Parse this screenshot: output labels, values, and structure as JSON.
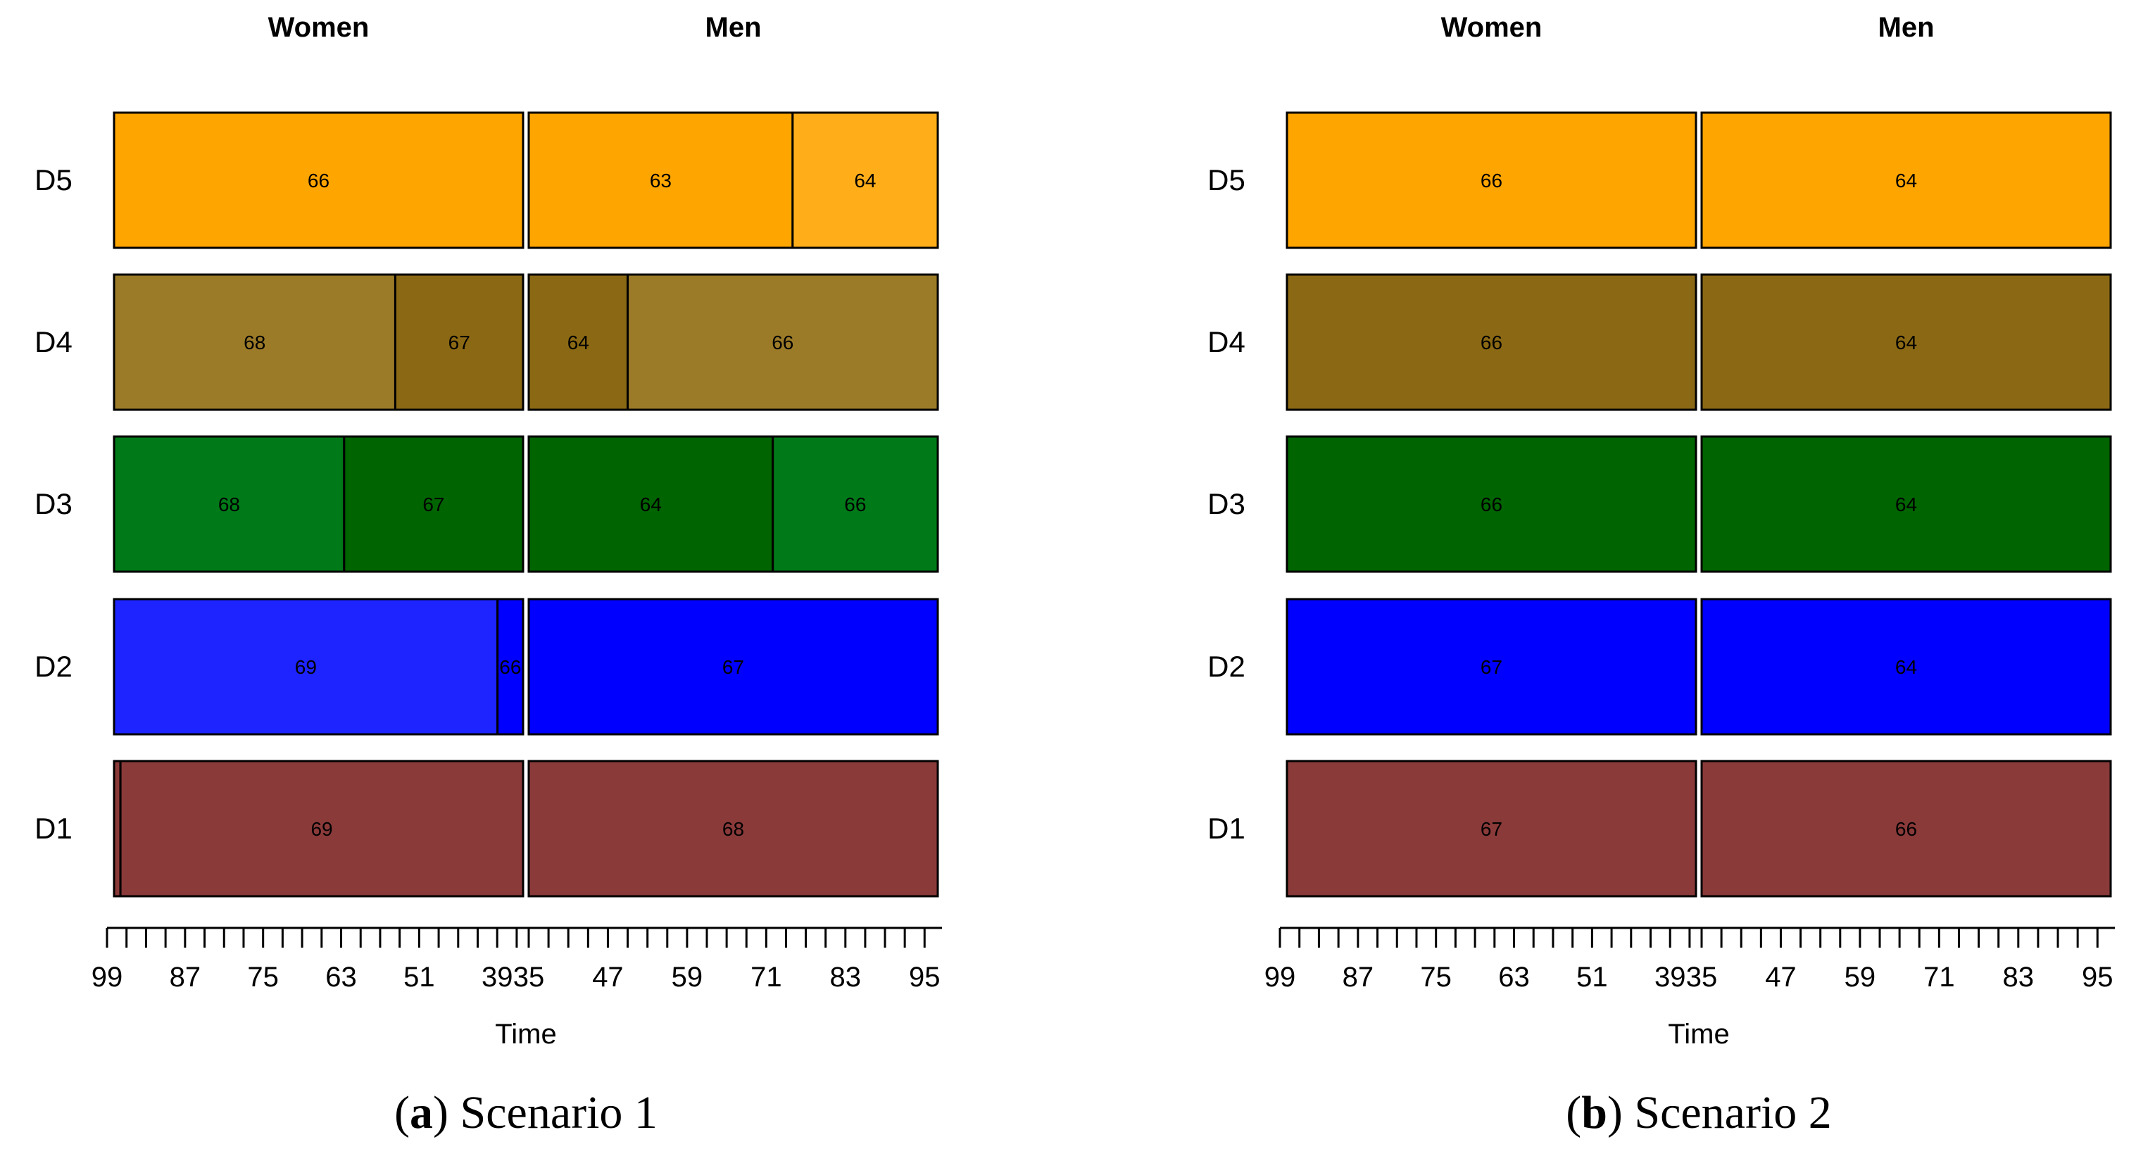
{
  "chart_data": [
    {
      "type": "timeline",
      "caption_letter": "a",
      "caption_text": "Scenario 1",
      "groups": [
        "Women",
        "Men"
      ],
      "rows": [
        "D5",
        "D4",
        "D3",
        "D2",
        "D1"
      ],
      "x_axis": {
        "title": "Time",
        "women_ticks": [
          "99",
          "87",
          "75",
          "63",
          "51",
          "39"
        ],
        "men_ticks": [
          "35",
          "47",
          "59",
          "71",
          "83",
          "95"
        ],
        "women_range": [
          99,
          35
        ],
        "men_range": [
          35,
          97
        ]
      },
      "segments": {
        "D5": {
          "Women": [
            {
              "label": "66",
              "from": 99,
              "to": 35,
              "color": "#FFA500"
            }
          ],
          "Men": [
            {
              "label": "63",
              "from": 35,
              "to": 75,
              "color": "#FFA500"
            },
            {
              "label": "64",
              "from": 75,
              "to": 97,
              "color": "#FFAE1A"
            }
          ]
        },
        "D4": {
          "Women": [
            {
              "label": "68",
              "from": 99,
              "to": 55,
              "color": "#9C7B28"
            },
            {
              "label": "67",
              "from": 55,
              "to": 35,
              "color": "#8B6914"
            }
          ],
          "Men": [
            {
              "label": "64",
              "from": 35,
              "to": 50,
              "color": "#8B6914"
            },
            {
              "label": "66",
              "from": 50,
              "to": 97,
              "color": "#9C7B28"
            }
          ]
        },
        "D3": {
          "Women": [
            {
              "label": "68",
              "from": 99,
              "to": 63,
              "color": "#007A18"
            },
            {
              "label": "67",
              "from": 63,
              "to": 35,
              "color": "#006400"
            }
          ],
          "Men": [
            {
              "label": "64",
              "from": 35,
              "to": 72,
              "color": "#006400"
            },
            {
              "label": "66",
              "from": 72,
              "to": 97,
              "color": "#007A18"
            }
          ]
        },
        "D2": {
          "Women": [
            {
              "label": "69",
              "from": 99,
              "to": 39,
              "color": "#1E24FF"
            },
            {
              "label": "66",
              "from": 39,
              "to": 35,
              "color": "#0000FF"
            }
          ],
          "Men": [
            {
              "label": "67",
              "from": 35,
              "to": 97,
              "color": "#0000FF"
            }
          ]
        },
        "D1": {
          "Women": [
            {
              "label": "",
              "from": 99,
              "to": 98,
              "color": "#8B3A3A"
            },
            {
              "label": "69",
              "from": 98,
              "to": 35,
              "color": "#8B3A3A"
            }
          ],
          "Men": [
            {
              "label": "68",
              "from": 35,
              "to": 97,
              "color": "#8B3A3A"
            }
          ]
        }
      }
    },
    {
      "type": "timeline",
      "caption_letter": "b",
      "caption_text": "Scenario 2",
      "groups": [
        "Women",
        "Men"
      ],
      "rows": [
        "D5",
        "D4",
        "D3",
        "D2",
        "D1"
      ],
      "x_axis": {
        "title": "Time",
        "women_ticks": [
          "99",
          "87",
          "75",
          "63",
          "51",
          "39"
        ],
        "men_ticks": [
          "35",
          "47",
          "59",
          "71",
          "83",
          "95"
        ],
        "women_range": [
          99,
          35
        ],
        "men_range": [
          35,
          97
        ]
      },
      "segments": {
        "D5": {
          "Women": [
            {
              "label": "66",
              "from": 99,
              "to": 35,
              "color": "#FFA500"
            }
          ],
          "Men": [
            {
              "label": "64",
              "from": 35,
              "to": 97,
              "color": "#FFA500"
            }
          ]
        },
        "D4": {
          "Women": [
            {
              "label": "66",
              "from": 99,
              "to": 35,
              "color": "#8B6914"
            }
          ],
          "Men": [
            {
              "label": "64",
              "from": 35,
              "to": 97,
              "color": "#8B6914"
            }
          ]
        },
        "D3": {
          "Women": [
            {
              "label": "66",
              "from": 99,
              "to": 35,
              "color": "#006400"
            }
          ],
          "Men": [
            {
              "label": "64",
              "from": 35,
              "to": 97,
              "color": "#006400"
            }
          ]
        },
        "D2": {
          "Women": [
            {
              "label": "67",
              "from": 99,
              "to": 35,
              "color": "#0000FF"
            }
          ],
          "Men": [
            {
              "label": "64",
              "from": 35,
              "to": 97,
              "color": "#0000FF"
            }
          ]
        },
        "D1": {
          "Women": [
            {
              "label": "67",
              "from": 99,
              "to": 35,
              "color": "#8B3A3A"
            }
          ],
          "Men": [
            {
              "label": "66",
              "from": 35,
              "to": 97,
              "color": "#8B3A3A"
            }
          ]
        }
      }
    }
  ]
}
